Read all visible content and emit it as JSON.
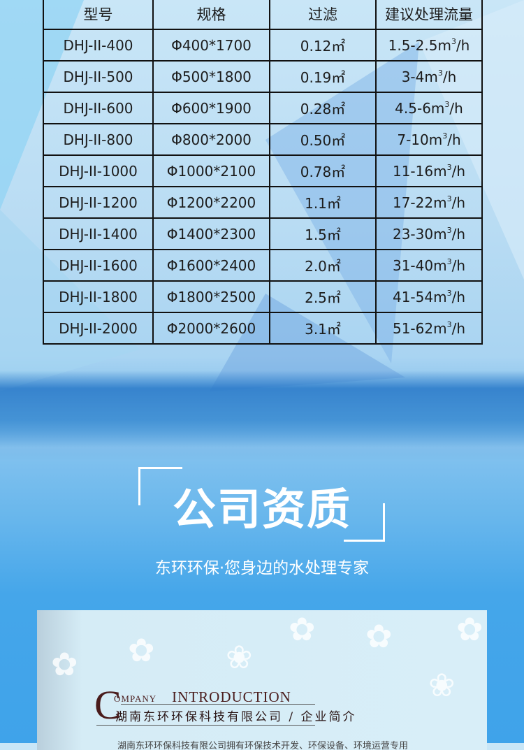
{
  "table": {
    "headers": [
      "型号",
      "规格",
      "过滤",
      "建议处理流量"
    ],
    "rows": [
      [
        "DHJ-II-400",
        "Φ400*1700",
        "0.12㎡",
        "1.5-2.5m",
        "/h"
      ],
      [
        "DHJ-II-500",
        "Φ500*1800",
        "0.19㎡",
        "3-4m",
        "/h"
      ],
      [
        "DHJ-II-600",
        "Φ600*1900",
        "0.28㎡",
        "4.5-6m",
        "/h"
      ],
      [
        "DHJ-II-800",
        "Φ800*2000",
        "0.50㎡",
        "7-10m",
        "/h"
      ],
      [
        "DHJ-II-1000",
        "Φ1000*2100",
        "0.78㎡",
        "11-16m",
        "/h"
      ],
      [
        "DHJ-II-1200",
        "Φ1200*2200",
        "1.1㎡",
        "17-22m",
        "/h"
      ],
      [
        "DHJ-II-1400",
        "Φ1400*2300",
        "1.5㎡",
        "23-30m",
        "/h"
      ],
      [
        "DHJ-II-1600",
        "Φ1600*2400",
        "2.0㎡",
        "31-40m",
        "/h"
      ],
      [
        "DHJ-II-1800",
        "Φ1800*2500",
        "2.5㎡",
        "41-54m",
        "/h"
      ],
      [
        "DHJ-II-2000",
        "Φ2000*2600",
        "3.1㎡",
        "51-62m",
        "/h"
      ]
    ],
    "cube_sup": "3"
  },
  "section": {
    "title": "公司资质",
    "subtitle": "东环环保·您身边的水处理专家"
  },
  "intro": {
    "big_letter": "C",
    "eng_small": "OMPANY",
    "eng": "INTRODUCTION",
    "company": "湖南东环环保科技有限公司",
    "suffix": "/ 企业简介",
    "body": "湖南东环环保科技有限公司拥有环保技术开发、环保设备、环境运营专用"
  }
}
